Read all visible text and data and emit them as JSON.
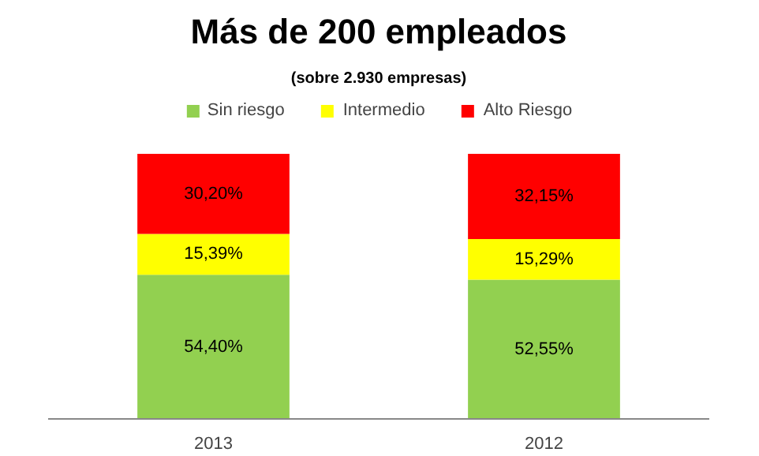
{
  "chart_data": {
    "type": "bar",
    "title": "Más de 200 empleados",
    "subtitle": "(sobre 2.930 empresas)",
    "categories": [
      "2013",
      "2012"
    ],
    "stacked": true,
    "legend": "top",
    "grid": false,
    "series": [
      {
        "name": "Sin riesgo",
        "color": "#92d050",
        "values": [
          54.4,
          52.55
        ],
        "value_labels": [
          "54,40%",
          "52,55%"
        ]
      },
      {
        "name": "Intermedio",
        "color": "#ffff00",
        "values": [
          15.39,
          15.29
        ],
        "value_labels": [
          "15,39%",
          "15,29%"
        ]
      },
      {
        "name": "Alto Riesgo",
        "color": "#ff0000",
        "values": [
          30.2,
          32.15
        ],
        "value_labels": [
          "30,20%",
          "32,15%"
        ]
      }
    ]
  }
}
